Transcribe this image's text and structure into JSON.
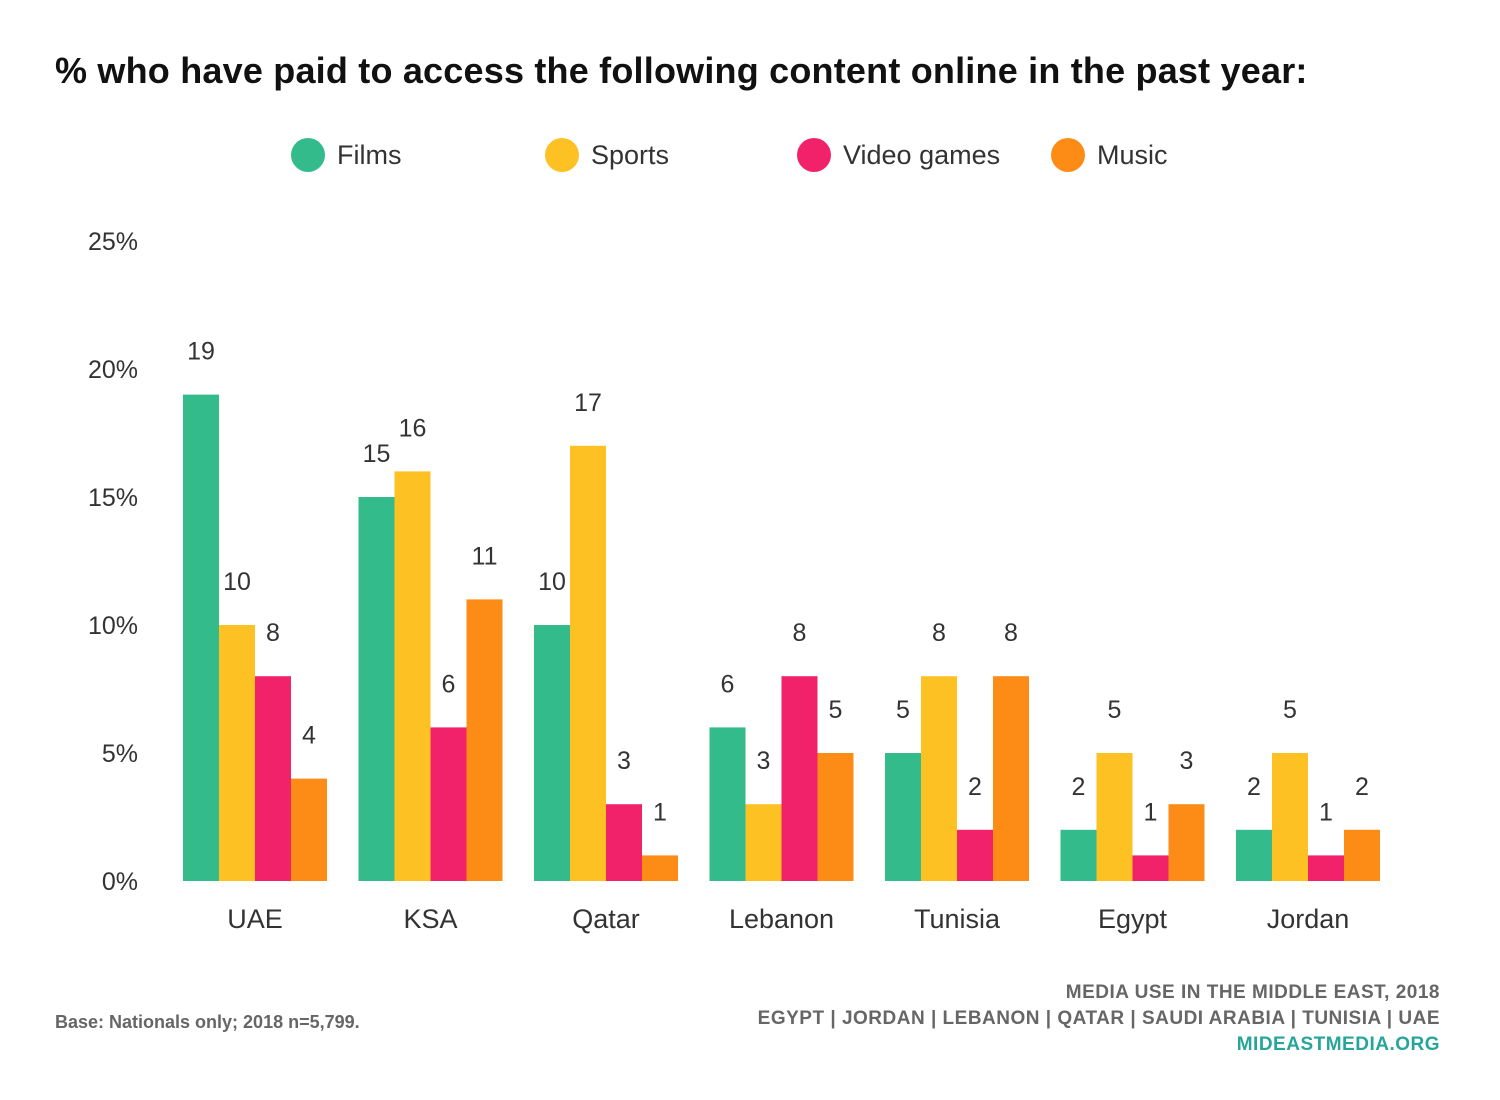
{
  "chart_data": {
    "type": "bar",
    "title": "% who have paid to access the following content online in the past year:",
    "categories": [
      "UAE",
      "KSA",
      "Qatar",
      "Lebanon",
      "Tunisia",
      "Egypt",
      "Jordan"
    ],
    "series": [
      {
        "name": "Films",
        "color": "#34bb8c",
        "values": [
          19,
          15,
          10,
          6,
          5,
          2,
          2
        ]
      },
      {
        "name": "Sports",
        "color": "#fdc123",
        "values": [
          10,
          16,
          17,
          3,
          8,
          5,
          5
        ]
      },
      {
        "name": "Video games",
        "color": "#f2226a",
        "values": [
          8,
          6,
          3,
          8,
          2,
          1,
          1
        ]
      },
      {
        "name": "Music",
        "color": "#fd8c17",
        "values": [
          4,
          11,
          1,
          5,
          8,
          3,
          2
        ]
      }
    ],
    "yticks": [
      "0%",
      "5%",
      "10%",
      "15%",
      "20%",
      "25%"
    ],
    "ylim": [
      0,
      25
    ],
    "grid": false,
    "legend_position": "top"
  },
  "footer": {
    "base_note": "Base: Nationals only; 2018 n=5,799.",
    "source_line1": "MEDIA USE IN THE MIDDLE EAST, 2018",
    "source_line2": "EGYPT | JORDAN | LEBANON | QATAR | SAUDI ARABIA | TUNISIA | UAE",
    "source_site": "MIDEASTMEDIA.ORG"
  }
}
